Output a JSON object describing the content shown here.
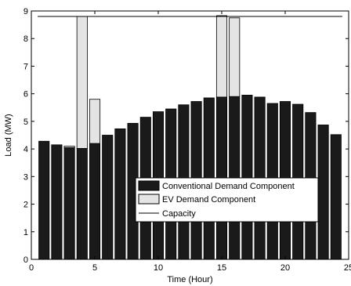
{
  "chart_data": {
    "type": "bar",
    "stacked": true,
    "x": [
      1,
      2,
      3,
      4,
      5,
      6,
      7,
      8,
      9,
      10,
      11,
      12,
      13,
      14,
      15,
      16,
      17,
      18,
      19,
      20,
      21,
      22,
      23,
      24
    ],
    "series": [
      {
        "name": "Conventional Demand Component",
        "color": "#1a1a1a",
        "values": [
          4.28,
          4.15,
          4.05,
          4.02,
          4.2,
          4.5,
          4.73,
          4.93,
          5.15,
          5.35,
          5.45,
          5.6,
          5.72,
          5.85,
          5.88,
          5.9,
          5.95,
          5.88,
          5.65,
          5.72,
          5.62,
          5.32,
          4.87,
          4.52
        ]
      },
      {
        "name": "EV Demand Component",
        "color": "#e4e4e4",
        "values": [
          0,
          0,
          0.05,
          4.78,
          1.6,
          0,
          0,
          0,
          0,
          0,
          0,
          0,
          0,
          0,
          2.95,
          2.85,
          0,
          0,
          0,
          0,
          0,
          0,
          0,
          0
        ]
      }
    ],
    "capacity": {
      "name": "Capacity",
      "value": 8.8,
      "x_range": [
        0.5,
        24.5
      ]
    },
    "xlabel": "Time (Hour)",
    "ylabel": "Load (MW)",
    "xlim": [
      0,
      25
    ],
    "ylim": [
      0,
      9
    ],
    "xticks": [
      0,
      5,
      10,
      15,
      20,
      25
    ],
    "yticks": [
      0,
      1,
      2,
      3,
      4,
      5,
      6,
      7,
      8,
      9
    ],
    "grid": false,
    "legend_placement": "lower-right"
  }
}
